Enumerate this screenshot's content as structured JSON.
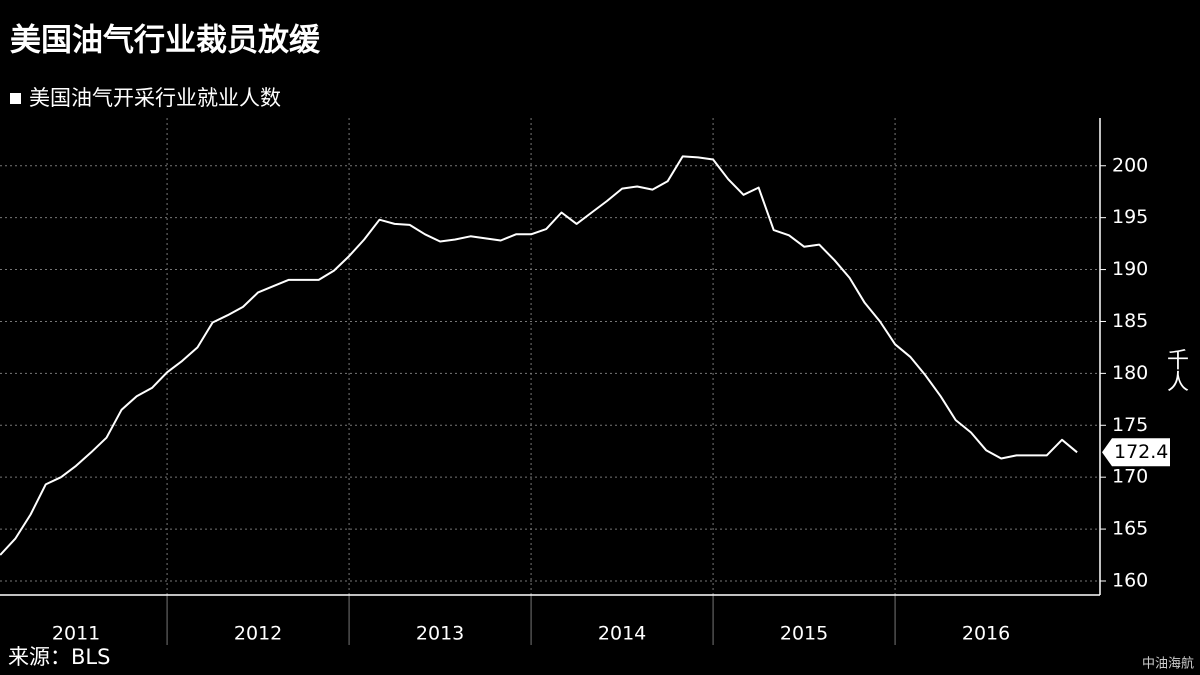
{
  "chart_data": {
    "type": "line",
    "title": "美国油气行业裁员放缓",
    "y_label": "千人",
    "source": "来源：BLS",
    "watermark": "中油海航",
    "x": [
      2011.083,
      2011.167,
      2011.25,
      2011.333,
      2011.417,
      2011.5,
      2011.583,
      2011.667,
      2011.75,
      2011.833,
      2011.917,
      2012,
      2012.083,
      2012.167,
      2012.25,
      2012.333,
      2012.417,
      2012.5,
      2012.583,
      2012.667,
      2012.75,
      2012.833,
      2012.917,
      2013,
      2013.083,
      2013.167,
      2013.25,
      2013.333,
      2013.417,
      2013.5,
      2013.583,
      2013.667,
      2013.75,
      2013.833,
      2013.917,
      2014,
      2014.083,
      2014.167,
      2014.25,
      2014.333,
      2014.417,
      2014.5,
      2014.583,
      2014.667,
      2014.75,
      2014.833,
      2014.917,
      2015,
      2015.083,
      2015.167,
      2015.25,
      2015.333,
      2015.417,
      2015.5,
      2015.583,
      2015.667,
      2015.75,
      2015.833,
      2015.917,
      2016,
      2016.083,
      2016.167,
      2016.25,
      2016.333,
      2016.417,
      2016.5,
      2016.583,
      2016.667,
      2016.75,
      2016.833,
      2016.917,
      2017
    ],
    "series": [
      {
        "name": "美国油气开采行业就业人数",
        "color": "#ffffff",
        "values": [
          162.5,
          164.1,
          166.4,
          169.3,
          170.0,
          171.1,
          172.4,
          173.8,
          176.5,
          177.8,
          178.6,
          180.1,
          181.2,
          182.5,
          184.9,
          185.6,
          186.4,
          187.8,
          188.4,
          189.0,
          189.0,
          189.0,
          189.9,
          191.3,
          192.9,
          194.8,
          194.4,
          194.3,
          193.4,
          192.7,
          192.9,
          193.2,
          193.0,
          192.8,
          193.4,
          193.4,
          193.9,
          195.5,
          194.4,
          195.5,
          196.6,
          197.8,
          198.0,
          197.7,
          198.5,
          200.9,
          200.8,
          200.6,
          198.7,
          197.2,
          197.9,
          193.8,
          193.3,
          192.2,
          192.4,
          190.9,
          189.2,
          186.8,
          185.0,
          182.8,
          181.6,
          179.8,
          177.8,
          175.5,
          174.3,
          172.6,
          171.8,
          172.1,
          172.1,
          172.1,
          173.6,
          172.4
        ],
        "value_labels": [
          null,
          null,
          null,
          null,
          null,
          null,
          null,
          null,
          null,
          null,
          null,
          null,
          null,
          null,
          null,
          null,
          null,
          null,
          null,
          null,
          null,
          null,
          null,
          null,
          null,
          null,
          null,
          null,
          null,
          null,
          null,
          null,
          null,
          null,
          null,
          null,
          null,
          null,
          null,
          null,
          null,
          null,
          null,
          null,
          null,
          null,
          null,
          null,
          null,
          null,
          null,
          null,
          null,
          null,
          null,
          null,
          null,
          null,
          null,
          null,
          null,
          null,
          null,
          null,
          null,
          null,
          null,
          null,
          null,
          null,
          null,
          "172.4"
        ]
      }
    ],
    "xlim": [
      2011.082,
      2017.126
    ],
    "xticks": [
      2011,
      2012,
      2013,
      2014,
      2015,
      2016
    ],
    "ylim": [
      158.65,
      204.6
    ],
    "yticks": [
      160,
      165,
      170,
      175,
      180,
      185,
      190,
      195,
      200
    ],
    "grid": true
  }
}
